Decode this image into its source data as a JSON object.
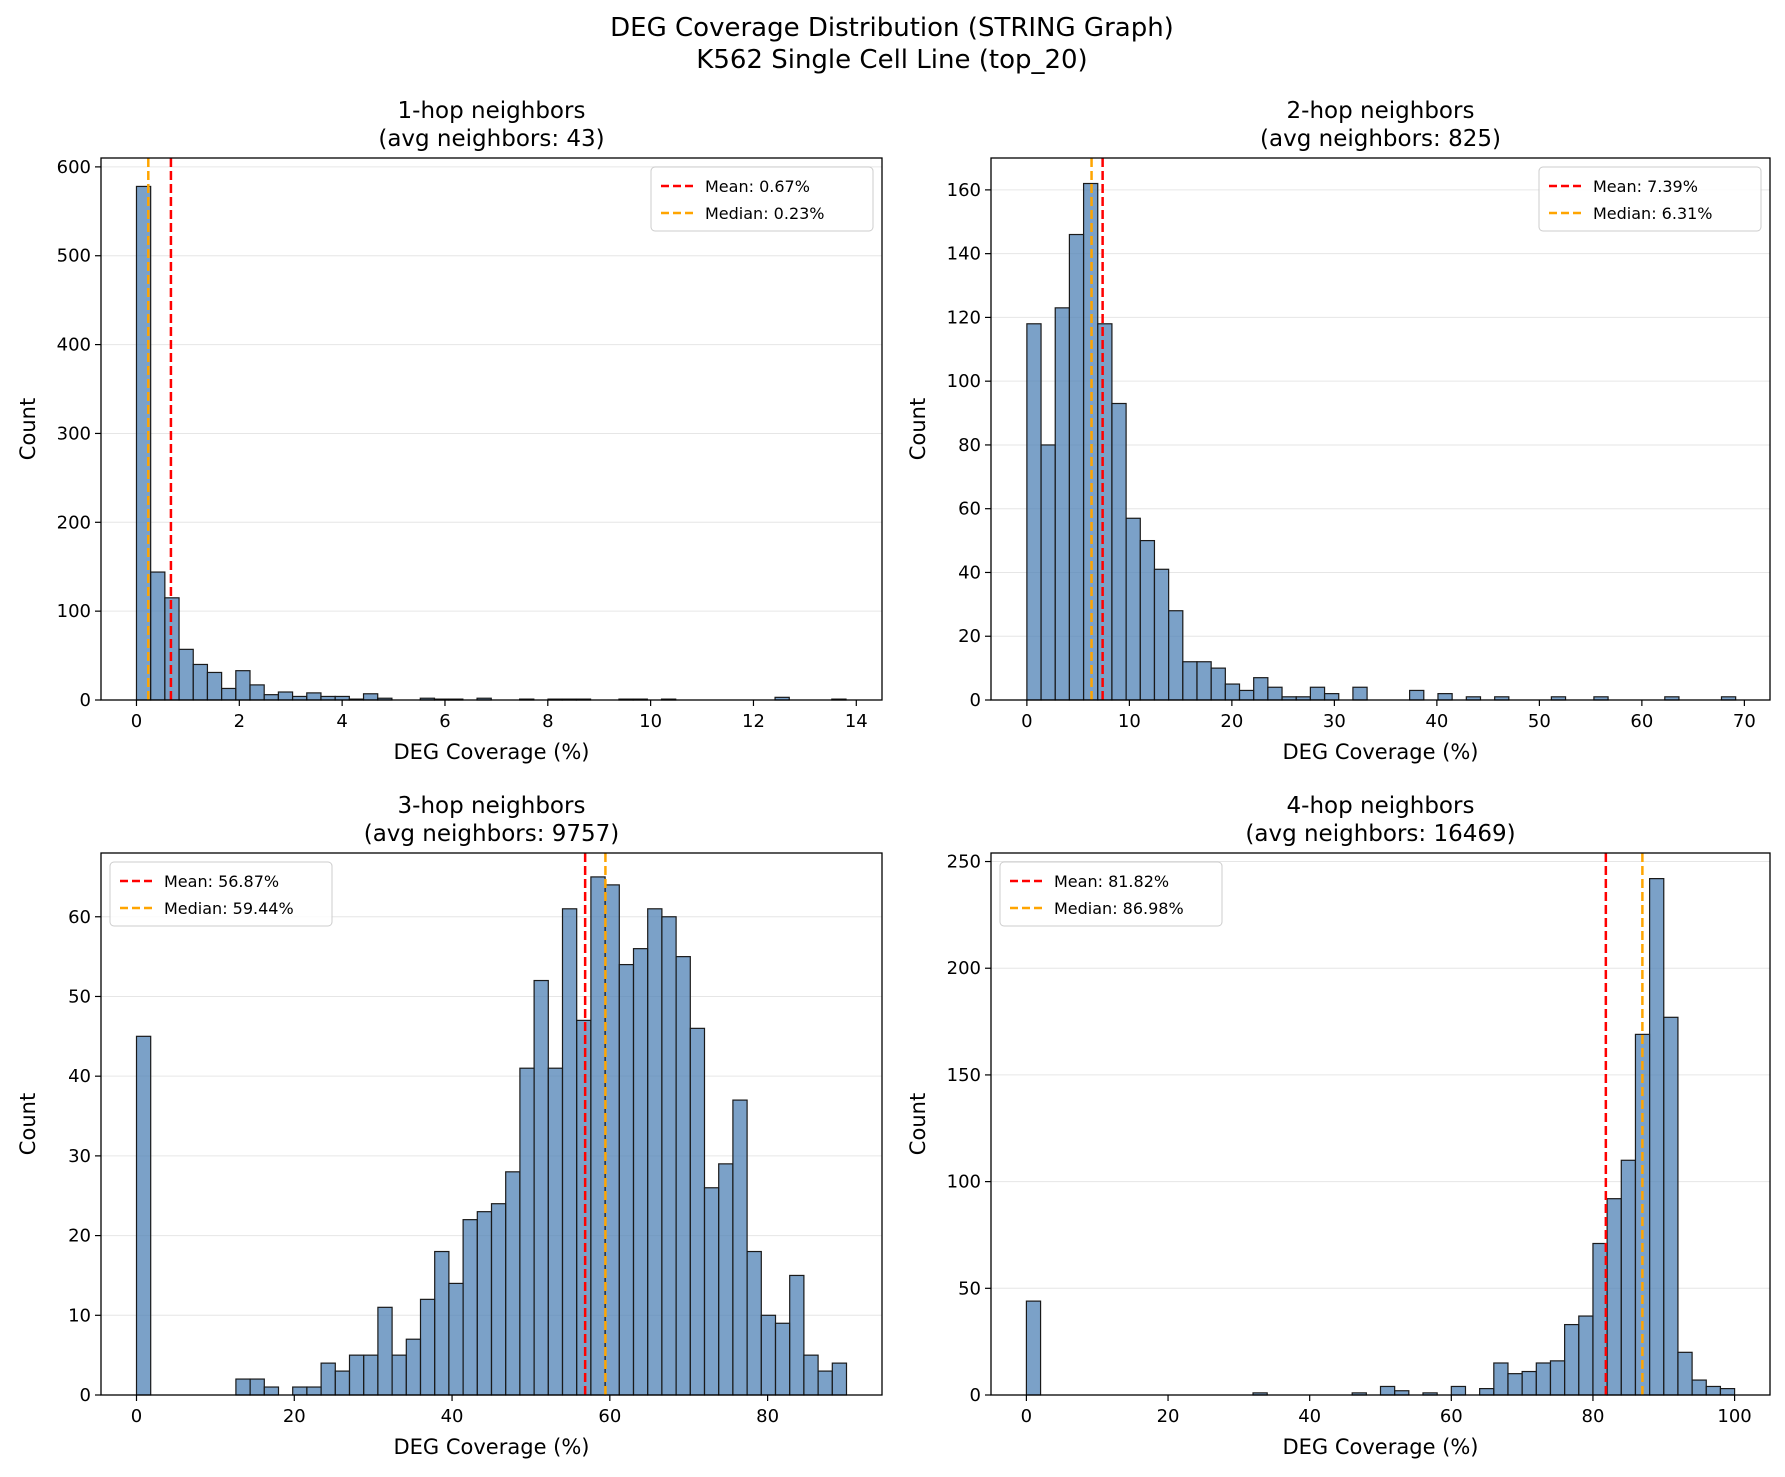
{
  "figure": {
    "title_line1": "DEG Coverage Distribution (STRING Graph)",
    "title_line2": "K562 Single Cell Line (top_20)"
  },
  "colors": {
    "bar_fill": "#4f81b5",
    "bar_edge": "#1a1a1a",
    "mean_line": "#ff0000",
    "median_line": "#ffa500",
    "grid": "#e6e6e6"
  },
  "chart_data": [
    {
      "type": "bar",
      "title": "1-hop neighbors",
      "subtitle": "(avg neighbors: 43)",
      "xlabel": "DEG Coverage (%)",
      "ylabel": "Count",
      "xlim": [
        -0.69,
        14.5
      ],
      "ylim": [
        0,
        610
      ],
      "xticks": [
        0,
        2,
        4,
        6,
        8,
        10,
        12,
        14
      ],
      "yticks": [
        0,
        100,
        200,
        300,
        400,
        500,
        600
      ],
      "bin_start": 0,
      "bin_width": 0.276,
      "values": [
        578,
        144,
        115,
        57,
        40,
        31,
        13,
        33,
        17,
        6,
        9,
        4,
        8,
        4,
        4,
        1,
        7,
        2,
        0,
        0,
        2,
        1,
        1,
        0,
        2,
        0,
        0,
        1,
        0,
        1,
        1,
        1,
        0,
        0,
        1,
        1,
        0,
        1,
        0,
        0,
        0,
        0,
        0,
        0,
        0,
        3,
        0,
        0,
        0,
        1
      ],
      "mean": 0.67,
      "median": 0.23,
      "legend_mean": "Mean: 0.67%",
      "legend_median": "Median: 0.23%",
      "legend_loc": "upper right",
      "grid": "y"
    },
    {
      "type": "bar",
      "title": "2-hop neighbors",
      "subtitle": "(avg neighbors: 825)",
      "xlabel": "DEG Coverage (%)",
      "ylabel": "Count",
      "xlim": [
        -3.5,
        72.5
      ],
      "ylim": [
        0,
        170
      ],
      "xticks": [
        0,
        10,
        20,
        30,
        40,
        50,
        60,
        70
      ],
      "yticks": [
        0,
        20,
        40,
        60,
        80,
        100,
        120,
        140,
        160
      ],
      "bin_start": 0,
      "bin_width": 1.383,
      "values": [
        118,
        80,
        123,
        146,
        162,
        118,
        93,
        57,
        50,
        41,
        28,
        12,
        12,
        10,
        5,
        3,
        7,
        4,
        1,
        1,
        4,
        2,
        0,
        4,
        0,
        0,
        0,
        3,
        0,
        2,
        0,
        1,
        0,
        1,
        0,
        0,
        0,
        1,
        0,
        0,
        1,
        0,
        0,
        0,
        0,
        1,
        0,
        0,
        0,
        1
      ],
      "mean": 7.39,
      "median": 6.31,
      "legend_mean": "Mean: 7.39%",
      "legend_median": "Median: 6.31%",
      "legend_loc": "upper right",
      "grid": "y"
    },
    {
      "type": "bar",
      "title": "3-hop neighbors",
      "subtitle": "(avg neighbors: 9757)",
      "xlabel": "DEG Coverage (%)",
      "ylabel": "Count",
      "xlim": [
        -4.5,
        94.5
      ],
      "ylim": [
        0,
        68
      ],
      "xticks": [
        0,
        20,
        40,
        60,
        80
      ],
      "yticks": [
        0,
        10,
        20,
        30,
        40,
        50,
        60
      ],
      "bin_start": 0,
      "bin_width": 1.8,
      "values": [
        45,
        0,
        0,
        0,
        0,
        0,
        0,
        2,
        2,
        1,
        0,
        1,
        1,
        4,
        3,
        5,
        5,
        11,
        5,
        7,
        12,
        18,
        14,
        22,
        23,
        24,
        28,
        41,
        52,
        41,
        61,
        47,
        65,
        64,
        54,
        56,
        61,
        60,
        55,
        46,
        26,
        29,
        37,
        18,
        10,
        9,
        15,
        5,
        3,
        4
      ],
      "mean": 56.87,
      "median": 59.44,
      "legend_mean": "Mean: 56.87%",
      "legend_median": "Median: 59.44%",
      "legend_loc": "upper left",
      "grid": "y"
    },
    {
      "type": "bar",
      "title": "4-hop neighbors",
      "subtitle": "(avg neighbors: 16469)",
      "xlabel": "DEG Coverage (%)",
      "ylabel": "Count",
      "xlim": [
        -5,
        105
      ],
      "ylim": [
        0,
        254
      ],
      "xticks": [
        0,
        20,
        40,
        60,
        80,
        100
      ],
      "yticks": [
        0,
        50,
        100,
        150,
        200,
        250
      ],
      "bin_start": 0,
      "bin_width": 2,
      "values": [
        44,
        0,
        0,
        0,
        0,
        0,
        0,
        0,
        0,
        0,
        0,
        0,
        0,
        0,
        0,
        0,
        1,
        0,
        0,
        0,
        0,
        0,
        0,
        1,
        0,
        4,
        2,
        0,
        1,
        0,
        4,
        0,
        3,
        15,
        10,
        11,
        15,
        16,
        33,
        37,
        71,
        92,
        110,
        169,
        242,
        177,
        20,
        7,
        4,
        3
      ],
      "mean": 81.82,
      "median": 86.98,
      "legend_mean": "Mean: 81.82%",
      "legend_median": "Median: 86.98%",
      "legend_loc": "upper left",
      "grid": "y"
    }
  ]
}
